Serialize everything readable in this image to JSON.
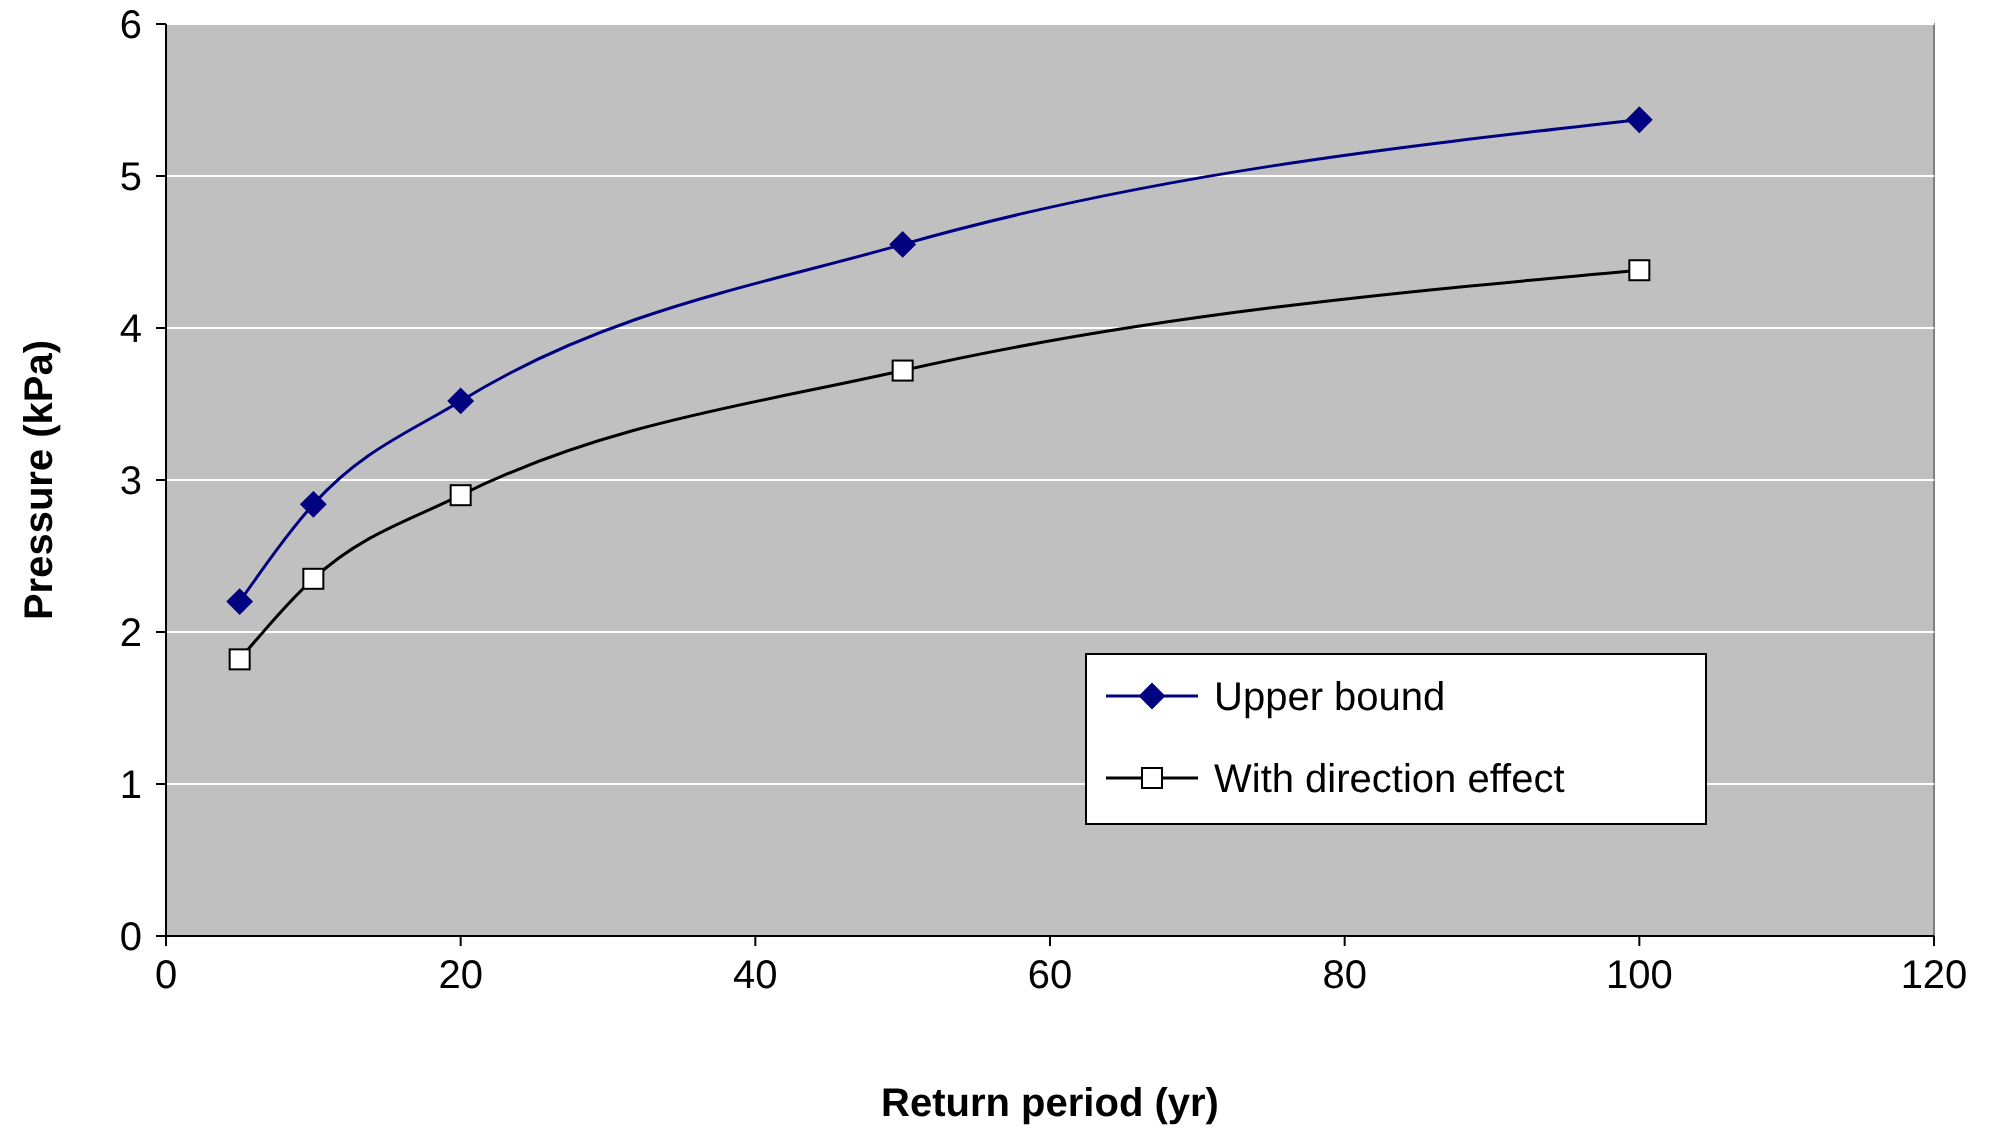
{
  "chart_data": {
    "type": "line",
    "xlabel": "Return period (yr)",
    "ylabel": "Pressure (kPa)",
    "xlim": [
      0,
      120
    ],
    "xticks": [
      0,
      20,
      40,
      60,
      80,
      100,
      120
    ],
    "ylim": [
      0,
      6
    ],
    "yticks": [
      0,
      1,
      2,
      3,
      4,
      5,
      6
    ],
    "grid": "y",
    "legend": "bottom right",
    "series": [
      {
        "name": "Upper bound",
        "color": "#000080",
        "marker": "diamond",
        "x": [
          5,
          10,
          20,
          50,
          100
        ],
        "values": [
          2.2,
          2.84,
          3.52,
          4.55,
          5.37
        ]
      },
      {
        "name": "With direction effect",
        "color": "#000000",
        "marker": "square",
        "x": [
          5,
          10,
          20,
          50,
          100
        ],
        "values": [
          1.82,
          2.35,
          2.9,
          3.72,
          4.38
        ]
      }
    ]
  }
}
